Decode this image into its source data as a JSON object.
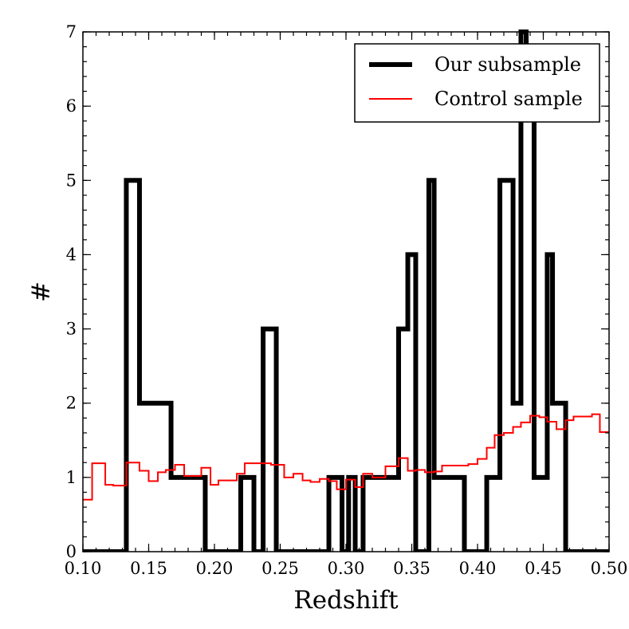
{
  "chart_data": {
    "type": "histogram",
    "title": "",
    "xlabel": "Redshift",
    "ylabel": "#",
    "xlim": [
      0.1,
      0.5
    ],
    "ylim": [
      0,
      7
    ],
    "x_ticks": [
      "0.10",
      "0.15",
      "0.20",
      "0.25",
      "0.30",
      "0.35",
      "0.40",
      "0.45",
      "0.50"
    ],
    "y_ticks": [
      "0",
      "1",
      "2",
      "3",
      "4",
      "5",
      "6",
      "7"
    ],
    "legend_position": "top-right",
    "series": [
      {
        "name": "Our subsample",
        "color": "#000000",
        "style": "thick-step",
        "bin_edges": [
          0.1,
          0.133,
          0.143,
          0.167,
          0.193,
          0.22,
          0.23,
          0.237,
          0.247,
          0.287,
          0.297,
          0.302,
          0.307,
          0.313,
          0.32,
          0.34,
          0.347,
          0.353,
          0.363,
          0.367,
          0.377,
          0.39,
          0.407,
          0.417,
          0.427,
          0.433,
          0.437,
          0.443,
          0.453,
          0.457,
          0.467,
          0.5
        ],
        "counts": [
          0,
          5,
          2,
          1,
          0,
          1,
          0,
          3,
          0,
          1,
          0,
          1,
          0,
          1,
          1,
          3,
          4,
          0,
          5,
          1,
          1,
          0,
          1,
          5,
          2,
          7,
          6,
          1,
          4,
          2,
          0
        ]
      },
      {
        "name": "Control sample",
        "color": "#ff0000",
        "style": "thin-step",
        "bin_edges": [
          0.1,
          0.107,
          0.117,
          0.123,
          0.133,
          0.143,
          0.15,
          0.157,
          0.163,
          0.17,
          0.177,
          0.183,
          0.19,
          0.197,
          0.203,
          0.21,
          0.217,
          0.223,
          0.233,
          0.243,
          0.253,
          0.26,
          0.267,
          0.273,
          0.28,
          0.287,
          0.293,
          0.3,
          0.307,
          0.313,
          0.32,
          0.33,
          0.34,
          0.347,
          0.353,
          0.36,
          0.367,
          0.373,
          0.38,
          0.387,
          0.393,
          0.4,
          0.407,
          0.413,
          0.42,
          0.427,
          0.433,
          0.44,
          0.447,
          0.453,
          0.46,
          0.467,
          0.473,
          0.48,
          0.487,
          0.493,
          0.5
        ],
        "counts": [
          0.7,
          1.19,
          0.9,
          0.89,
          1.2,
          1.09,
          0.95,
          1.07,
          1.1,
          1.17,
          1.02,
          1.02,
          1.13,
          0.9,
          0.96,
          0.96,
          1.05,
          1.19,
          1.19,
          1.17,
          1.0,
          1.05,
          0.96,
          0.94,
          0.98,
          0.95,
          0.84,
          0.97,
          0.87,
          1.05,
          1.0,
          1.15,
          1.26,
          1.09,
          1.1,
          1.07,
          1.08,
          1.16,
          1.16,
          1.16,
          1.18,
          1.25,
          1.4,
          1.57,
          1.6,
          1.68,
          1.74,
          1.83,
          1.81,
          1.75,
          1.65,
          1.77,
          1.82,
          1.82,
          1.85,
          1.61
        ]
      }
    ]
  }
}
